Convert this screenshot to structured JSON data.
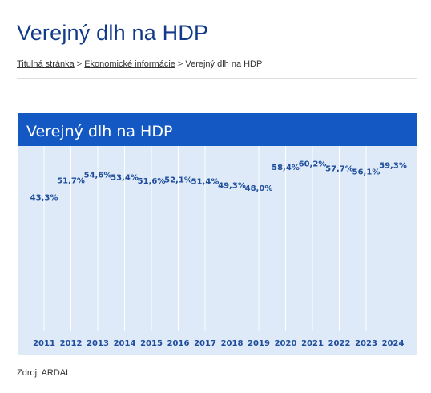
{
  "page": {
    "title": "Verejný dlh na HDP",
    "source": "Zdroj: ARDAL"
  },
  "breadcrumb": {
    "items": [
      {
        "label": "Titulná stránka",
        "link": true
      },
      {
        "label": "Ekonomické informácie",
        "link": true
      },
      {
        "label": "Verejný dlh na HDP",
        "link": false
      }
    ],
    "separator": ">"
  },
  "colors": {
    "header_bg": "#1358c3",
    "plot_bg": "#deeaf7",
    "label": "#1f4d9c",
    "grid": "#ffffff"
  },
  "chart_data": {
    "type": "line",
    "title": "Verejný dlh na HDP",
    "xlabel": "",
    "ylabel": "",
    "x": [
      "2011",
      "2012",
      "2013",
      "2014",
      "2015",
      "2016",
      "2017",
      "2018",
      "2019",
      "2020",
      "2021",
      "2022",
      "2023",
      "2024"
    ],
    "values": [
      43.3,
      51.7,
      54.6,
      53.4,
      51.6,
      52.1,
      51.4,
      49.3,
      48.0,
      58.4,
      60.2,
      57.7,
      56.1,
      59.3
    ],
    "value_labels": [
      "43,3%",
      "51,7%",
      "54,6%",
      "53,4%",
      "51,6%",
      "52,1%",
      "51,4%",
      "49,3%",
      "48,0%",
      "58,4%",
      "60,2%",
      "57,7%",
      "56,1%",
      "59,3%"
    ],
    "ylim": [
      0,
      70
    ],
    "grid": true,
    "legend": "none",
    "markers": false
  }
}
